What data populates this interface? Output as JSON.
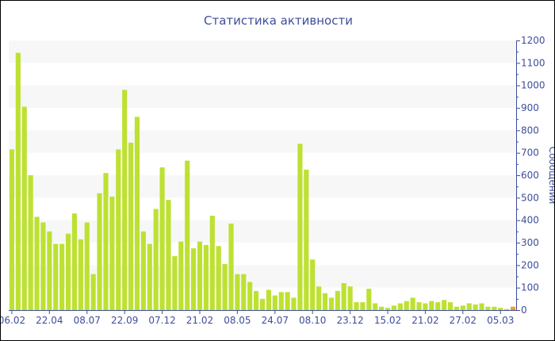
{
  "chart_data": {
    "type": "bar",
    "title": "Статистика активности",
    "ylabel": "Сообщений",
    "xlabel": "",
    "ylim": [
      0,
      1200
    ],
    "yticks": [
      0,
      100,
      200,
      300,
      400,
      500,
      600,
      700,
      800,
      900,
      1000,
      1100,
      1200
    ],
    "y_axis_side": "right",
    "grid": "alternating horizontal bands",
    "xtick_labels": [
      "06.02",
      "22.04",
      "08.07",
      "22.09",
      "07.12",
      "21.02",
      "08.05",
      "24.07",
      "08.10",
      "23.12",
      "15.02",
      "21.02",
      "27.02",
      "05.03"
    ],
    "xtick_every": 6,
    "values": [
      715,
      1145,
      905,
      600,
      415,
      390,
      350,
      295,
      295,
      340,
      430,
      315,
      390,
      160,
      520,
      610,
      505,
      715,
      980,
      745,
      860,
      350,
      295,
      450,
      635,
      490,
      240,
      305,
      665,
      275,
      305,
      290,
      420,
      285,
      205,
      385,
      160,
      160,
      125,
      85,
      50,
      90,
      65,
      80,
      80,
      55,
      740,
      625,
      225,
      105,
      75,
      55,
      85,
      120,
      105,
      35,
      35,
      95,
      30,
      15,
      10,
      20,
      30,
      40,
      55,
      35,
      30,
      40,
      35,
      45,
      35,
      15,
      20,
      30,
      25,
      30,
      15,
      15,
      10,
      5,
      15
    ],
    "colors": {
      "bar": "#bde132",
      "last_bar": "#f0a030",
      "axis": "#3e4e9b",
      "band": "#f7f7f7"
    }
  }
}
